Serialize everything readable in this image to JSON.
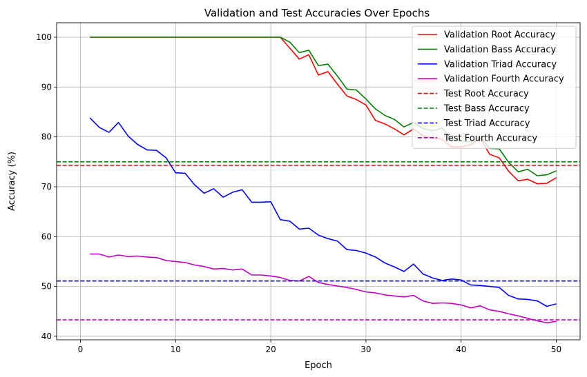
{
  "chart_data": {
    "type": "line",
    "title": "Validation and Test Accuracies Over Epochs",
    "xlabel": "Epoch",
    "ylabel": "Accuracy (%)",
    "xlim": [
      -2.5,
      52.5
    ],
    "ylim": [
      39.3,
      102.9
    ],
    "xticks": [
      0,
      10,
      20,
      30,
      40,
      50
    ],
    "yticks": [
      40,
      50,
      60,
      70,
      80,
      90,
      100
    ],
    "grid": true,
    "legend_position": "top-right",
    "x": [
      1,
      2,
      3,
      4,
      5,
      6,
      7,
      8,
      9,
      10,
      11,
      12,
      13,
      14,
      15,
      16,
      17,
      18,
      19,
      20,
      21,
      22,
      23,
      24,
      25,
      26,
      27,
      28,
      29,
      30,
      31,
      32,
      33,
      34,
      35,
      36,
      37,
      38,
      39,
      40,
      41,
      42,
      43,
      44,
      45,
      46,
      47,
      48,
      49,
      50
    ],
    "series": [
      {
        "name": "Validation Root Accuracy",
        "color": "#ff0000",
        "dash": "solid",
        "values": [
          100,
          100,
          100,
          100,
          100,
          100,
          100,
          100,
          100,
          100,
          100,
          100,
          100,
          100,
          100,
          100,
          100,
          100,
          100,
          100,
          100,
          97.8,
          95.6,
          96.5,
          92.4,
          93.1,
          90.6,
          88.2,
          87.5,
          86.4,
          83.3,
          82.6,
          81.6,
          80.4,
          81.6,
          80.2,
          79.8,
          79.5,
          78.0,
          78.0,
          78.4,
          79.8,
          76.5,
          75.8,
          73.1,
          71.2,
          71.5,
          70.6,
          70.7,
          71.8
        ]
      },
      {
        "name": "Validation Bass Accuracy",
        "color": "#008000",
        "dash": "solid",
        "values": [
          100,
          100,
          100,
          100,
          100,
          100,
          100,
          100,
          100,
          100,
          100,
          100,
          100,
          100,
          100,
          100,
          100,
          100,
          100,
          100,
          100,
          99.0,
          96.9,
          97.4,
          94.3,
          94.6,
          92.2,
          89.6,
          89.4,
          87.6,
          85.6,
          84.3,
          83.5,
          82.0,
          82.9,
          81.7,
          81.2,
          81.8,
          79.5,
          79.2,
          79.0,
          80.0,
          77.7,
          77.6,
          74.9,
          73.0,
          73.5,
          72.2,
          72.4,
          73.2
        ]
      },
      {
        "name": "Validation Triad Accuracy",
        "color": "#0000ff",
        "dash": "solid",
        "values": [
          83.8,
          81.9,
          80.9,
          82.9,
          80.2,
          78.5,
          77.4,
          77.3,
          75.8,
          72.8,
          72.7,
          70.4,
          68.7,
          69.6,
          67.9,
          68.9,
          69.4,
          66.9,
          66.9,
          67.0,
          63.4,
          63.1,
          61.5,
          61.7,
          60.3,
          59.6,
          59.1,
          57.4,
          57.2,
          56.7,
          55.9,
          54.7,
          53.9,
          53.0,
          54.5,
          52.5,
          51.7,
          51.2,
          51.5,
          51.3,
          50.3,
          50.2,
          50.0,
          49.8,
          48.2,
          47.5,
          47.4,
          47.1,
          46.0,
          46.5
        ]
      },
      {
        "name": "Validation Fourth Accuracy",
        "color": "#bf00bf",
        "dash": "solid",
        "values": [
          56.5,
          56.5,
          55.9,
          56.3,
          56.0,
          56.1,
          55.9,
          55.8,
          55.2,
          55.0,
          54.8,
          54.3,
          54.0,
          53.5,
          53.6,
          53.3,
          53.5,
          52.3,
          52.3,
          52.1,
          51.8,
          51.2,
          51.1,
          52.0,
          50.8,
          50.4,
          50.1,
          49.8,
          49.4,
          48.9,
          48.7,
          48.3,
          48.1,
          47.9,
          48.2,
          47.1,
          46.6,
          46.7,
          46.6,
          46.3,
          45.7,
          46.1,
          45.3,
          45.0,
          44.5,
          44.1,
          43.6,
          43.1,
          42.7,
          43.0
        ]
      },
      {
        "name": "Test Root Accuracy",
        "color": "#ff0000",
        "dash": "dashed",
        "constant": 74.3
      },
      {
        "name": "Test Bass Accuracy",
        "color": "#008000",
        "dash": "dashed",
        "constant": 75.0
      },
      {
        "name": "Test Triad Accuracy",
        "color": "#0000ff",
        "dash": "dashed",
        "constant": 51.1
      },
      {
        "name": "Test Fourth Accuracy",
        "color": "#bf00bf",
        "dash": "dashed",
        "constant": 43.3
      }
    ]
  }
}
